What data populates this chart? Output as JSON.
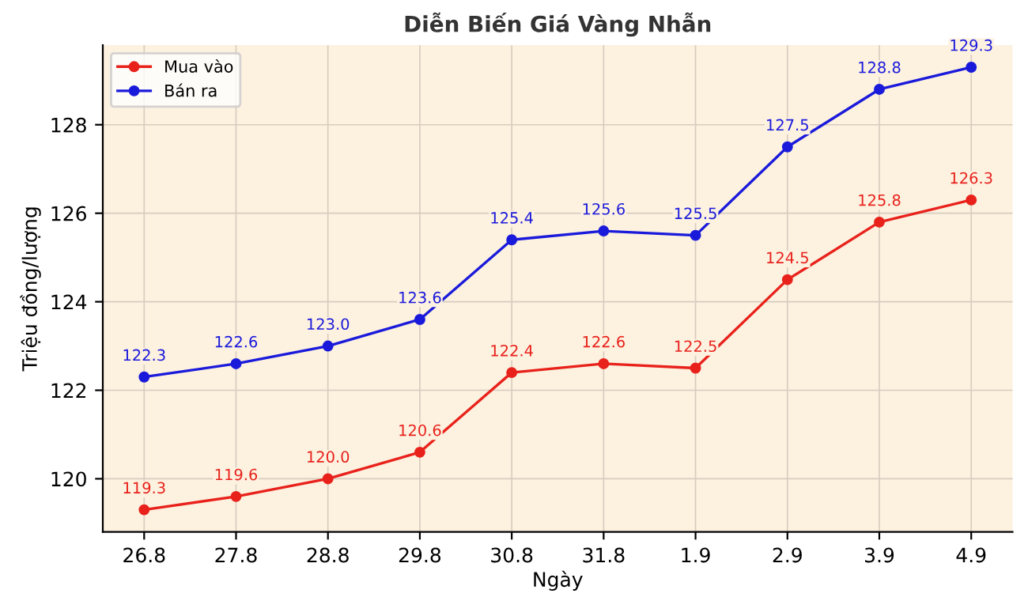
{
  "chart_data": {
    "type": "line",
    "title": "Diễn Biến Giá Vàng Nhẫn",
    "xlabel": "Ngày",
    "ylabel": "Triệu đồng/lượng",
    "categories": [
      "26.8",
      "27.8",
      "28.8",
      "29.8",
      "30.8",
      "31.8",
      "1.9",
      "2.9",
      "3.9",
      "4.9"
    ],
    "series": [
      {
        "name": "Mua vào",
        "color": "#e8221b",
        "values": [
          119.3,
          119.6,
          120.0,
          120.6,
          122.4,
          122.6,
          122.5,
          124.5,
          125.8,
          126.3
        ],
        "value_labels": [
          "119.3",
          "119.6",
          "120.0",
          "120.6",
          "122.4",
          "122.6",
          "122.5",
          "124.5",
          "125.8",
          "126.3"
        ]
      },
      {
        "name": "Bán ra",
        "color": "#1a1adb",
        "values": [
          122.3,
          122.6,
          123.0,
          123.6,
          125.4,
          125.6,
          125.5,
          127.5,
          128.8,
          129.3
        ],
        "value_labels": [
          "122.3",
          "122.6",
          "123.0",
          "123.6",
          "125.4",
          "125.6",
          "125.5",
          "127.5",
          "128.8",
          "129.3"
        ]
      }
    ],
    "ylim": [
      118.8,
      129.8
    ],
    "yticks": [
      120,
      122,
      124,
      126,
      128
    ],
    "grid": true,
    "legend": "top left",
    "marker": "circle",
    "line_style": "solid"
  }
}
